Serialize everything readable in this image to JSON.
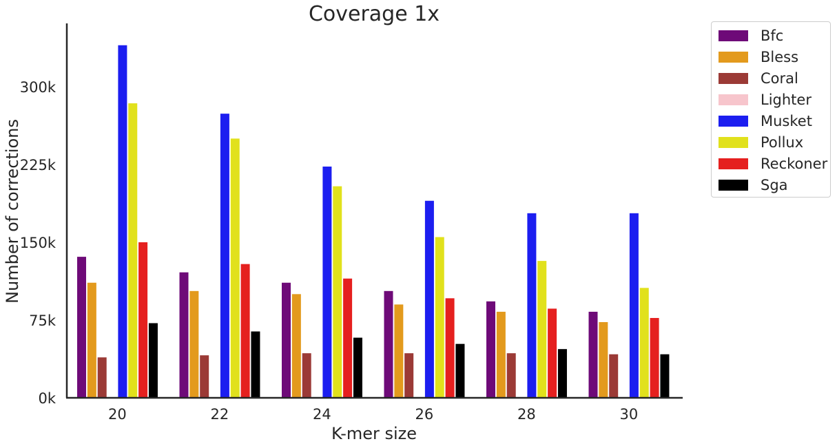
{
  "chart_data": {
    "type": "bar",
    "title": "Coverage 1x",
    "xlabel": "K-mer size",
    "ylabel": "Number of corrections",
    "categories": [
      "20",
      "22",
      "24",
      "26",
      "28",
      "30"
    ],
    "ylim": [
      0,
      360000
    ],
    "yticks": [
      0,
      75000,
      150000,
      225000,
      300000
    ],
    "ytick_labels": [
      "0k",
      "75k",
      "150k",
      "225k",
      "300k"
    ],
    "grid": false,
    "legend_position": "outside-right",
    "series": [
      {
        "name": "Bfc",
        "color": "#6e0a78",
        "values": [
          136000,
          121000,
          111000,
          103000,
          93000,
          83000
        ]
      },
      {
        "name": "Bless",
        "color": "#e39a1d",
        "values": [
          111000,
          103000,
          100000,
          90000,
          83000,
          73000
        ]
      },
      {
        "name": "Coral",
        "color": "#9b3a36",
        "values": [
          39000,
          41000,
          43000,
          43000,
          43000,
          42000
        ]
      },
      {
        "name": "Lighter",
        "color": "#f7c5cc",
        "values": [
          0,
          0,
          0,
          0,
          0,
          0
        ]
      },
      {
        "name": "Musket",
        "color": "#1c1ef0",
        "values": [
          340000,
          274000,
          223000,
          190000,
          178000,
          178000
        ]
      },
      {
        "name": "Pollux",
        "color": "#e1e11c",
        "values": [
          284000,
          250000,
          204000,
          155000,
          132000,
          106000
        ]
      },
      {
        "name": "Reckoner",
        "color": "#e5201f",
        "values": [
          150000,
          129000,
          115000,
          96000,
          86000,
          77000
        ]
      },
      {
        "name": "Sga",
        "color": "#000000",
        "values": [
          72000,
          64000,
          58000,
          52000,
          47000,
          42000
        ]
      }
    ]
  }
}
